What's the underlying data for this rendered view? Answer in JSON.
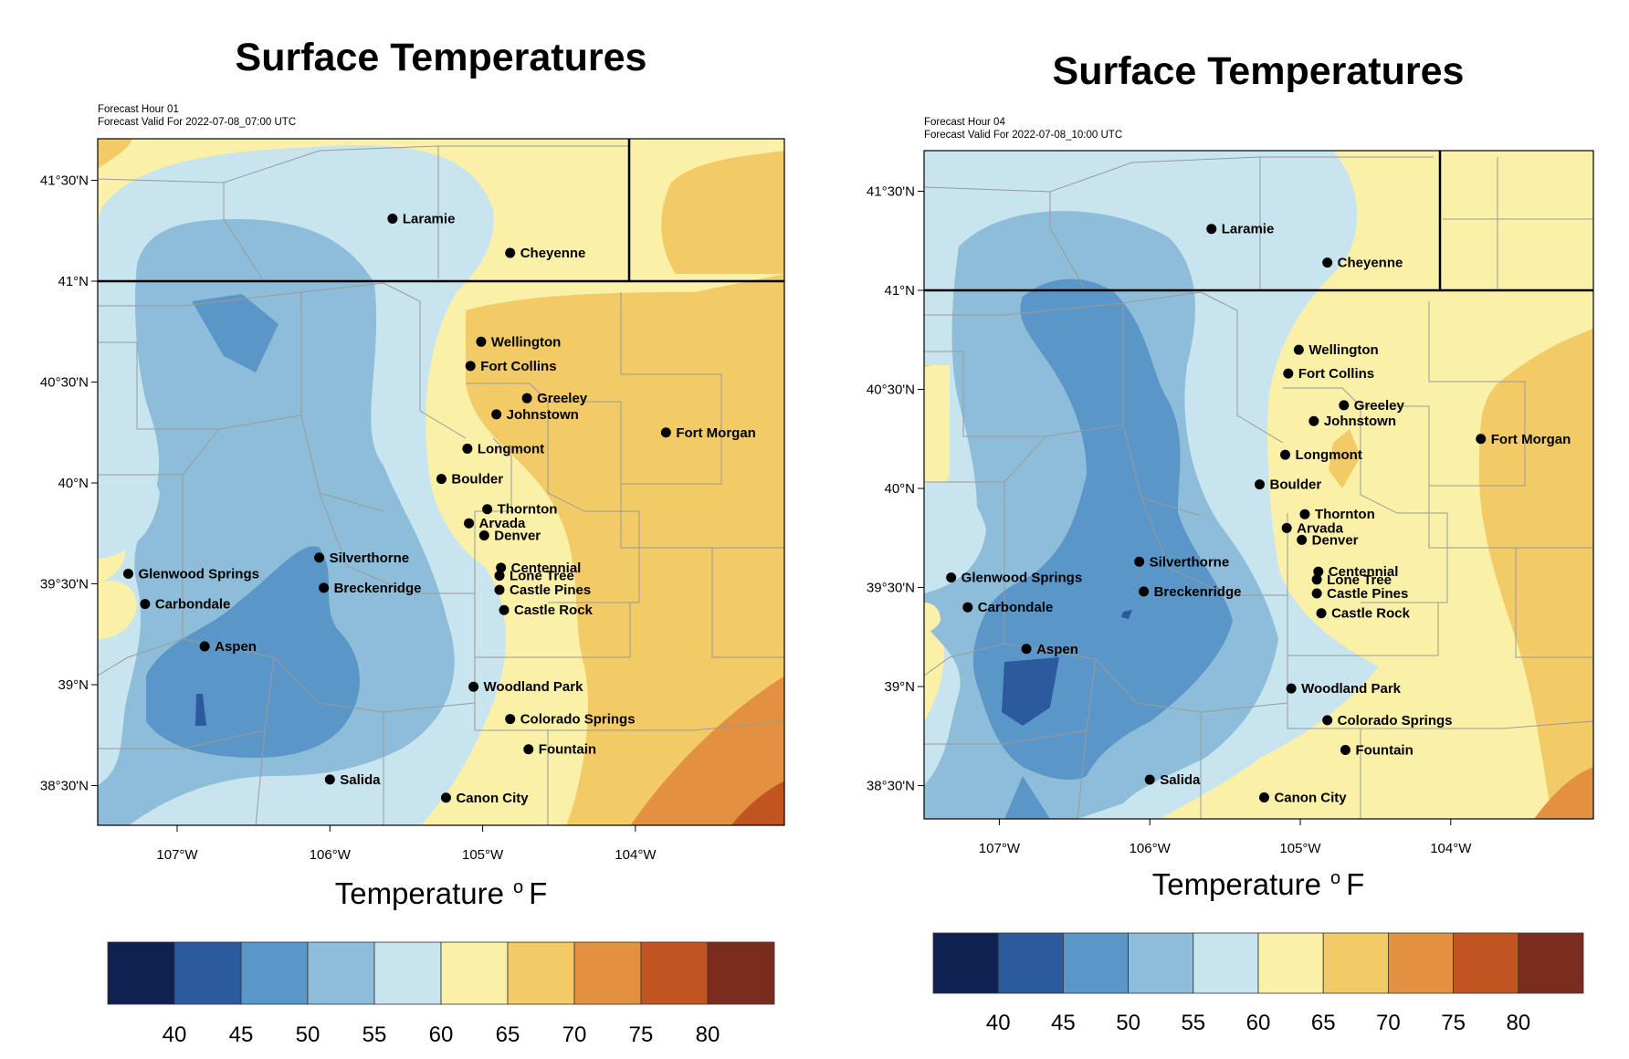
{
  "colors": {
    "levels": [
      "#0f2150",
      "#2b5a9e",
      "#5b96c8",
      "#8dbdd9",
      "#c8e4ef",
      "#fbf0a8",
      "#f2ca66",
      "#e39140",
      "#c05522",
      "#7a2d1f"
    ],
    "county_lines": "#9a9a9a",
    "state_line": "#000000"
  },
  "colorbar": {
    "ticks": [
      "40",
      "45",
      "50",
      "55",
      "60",
      "65",
      "70",
      "75",
      "80"
    ]
  },
  "panels": [
    {
      "title": "Surface Temperatures",
      "forecast_hour": "Forecast Hour 01",
      "forecast_valid": "Forecast Valid For 2022-07-08_07:00 UTC",
      "x_axis_label": "Temperature",
      "x_axis_unit": "o F",
      "lat_ticks": [
        "41°30'N",
        "41°N",
        "40°30'N",
        "40°N",
        "39°30'N",
        "39°N",
        "38°30'N"
      ],
      "lon_ticks": [
        "107°W",
        "106°W",
        "105°W",
        "104°W"
      ],
      "cities": [
        {
          "name": "Laramie",
          "lon": -105.59,
          "lat": 41.31
        },
        {
          "name": "Cheyenne",
          "lon": -104.82,
          "lat": 41.14
        },
        {
          "name": "Wellington",
          "lon": -105.01,
          "lat": 40.7
        },
        {
          "name": "Fort Collins",
          "lon": -105.08,
          "lat": 40.58
        },
        {
          "name": "Greeley",
          "lon": -104.71,
          "lat": 40.42
        },
        {
          "name": "Johnstown",
          "lon": -104.91,
          "lat": 40.34
        },
        {
          "name": "Fort Morgan",
          "lon": -103.8,
          "lat": 40.25
        },
        {
          "name": "Longmont",
          "lon": -105.1,
          "lat": 40.17
        },
        {
          "name": "Boulder",
          "lon": -105.27,
          "lat": 40.02
        },
        {
          "name": "Thornton",
          "lon": -104.97,
          "lat": 39.87
        },
        {
          "name": "Arvada",
          "lon": -105.09,
          "lat": 39.8
        },
        {
          "name": "Denver",
          "lon": -104.99,
          "lat": 39.74
        },
        {
          "name": "Silverthorne",
          "lon": -106.07,
          "lat": 39.63
        },
        {
          "name": "Glenwood Springs",
          "lon": -107.32,
          "lat": 39.55
        },
        {
          "name": "Centennial",
          "lon": -104.88,
          "lat": 39.58
        },
        {
          "name": "Lone Tree",
          "lon": -104.89,
          "lat": 39.54
        },
        {
          "name": "Breckenridge",
          "lon": -106.04,
          "lat": 39.48
        },
        {
          "name": "Castle Pines",
          "lon": -104.89,
          "lat": 39.47
        },
        {
          "name": "Carbondale",
          "lon": -107.21,
          "lat": 39.4
        },
        {
          "name": "Castle Rock",
          "lon": -104.86,
          "lat": 39.37
        },
        {
          "name": "Aspen",
          "lon": -106.82,
          "lat": 39.19
        },
        {
          "name": "Woodland Park",
          "lon": -105.06,
          "lat": 38.99
        },
        {
          "name": "Colorado Springs",
          "lon": -104.82,
          "lat": 38.83
        },
        {
          "name": "Fountain",
          "lon": -104.7,
          "lat": 38.68
        },
        {
          "name": "Salida",
          "lon": -106.0,
          "lat": 38.53
        },
        {
          "name": "Canon City",
          "lon": -105.24,
          "lat": 38.44
        }
      ]
    },
    {
      "title": "Surface Temperatures",
      "forecast_hour": "Forecast Hour 04",
      "forecast_valid": "Forecast Valid For 2022-07-08_10:00 UTC",
      "x_axis_label": "Temperature",
      "x_axis_unit": "o F",
      "lat_ticks": [
        "41°30'N",
        "41°N",
        "40°30'N",
        "40°N",
        "39°30'N",
        "39°N",
        "38°30'N"
      ],
      "lon_ticks": [
        "107°W",
        "106°W",
        "105°W",
        "104°W"
      ],
      "cities": [
        {
          "name": "Laramie",
          "lon": -105.59,
          "lat": 41.31
        },
        {
          "name": "Cheyenne",
          "lon": -104.82,
          "lat": 41.14
        },
        {
          "name": "Wellington",
          "lon": -105.01,
          "lat": 40.7
        },
        {
          "name": "Fort Collins",
          "lon": -105.08,
          "lat": 40.58
        },
        {
          "name": "Greeley",
          "lon": -104.71,
          "lat": 40.42
        },
        {
          "name": "Johnstown",
          "lon": -104.91,
          "lat": 40.34
        },
        {
          "name": "Fort Morgan",
          "lon": -103.8,
          "lat": 40.25
        },
        {
          "name": "Longmont",
          "lon": -105.1,
          "lat": 40.17
        },
        {
          "name": "Boulder",
          "lon": -105.27,
          "lat": 40.02
        },
        {
          "name": "Thornton",
          "lon": -104.97,
          "lat": 39.87
        },
        {
          "name": "Arvada",
          "lon": -105.09,
          "lat": 39.8
        },
        {
          "name": "Denver",
          "lon": -104.99,
          "lat": 39.74
        },
        {
          "name": "Silverthorne",
          "lon": -106.07,
          "lat": 39.63
        },
        {
          "name": "Glenwood Springs",
          "lon": -107.32,
          "lat": 39.55
        },
        {
          "name": "Centennial",
          "lon": -104.88,
          "lat": 39.58
        },
        {
          "name": "Lone Tree",
          "lon": -104.89,
          "lat": 39.54
        },
        {
          "name": "Breckenridge",
          "lon": -106.04,
          "lat": 39.48
        },
        {
          "name": "Castle Pines",
          "lon": -104.89,
          "lat": 39.47
        },
        {
          "name": "Carbondale",
          "lon": -107.21,
          "lat": 39.4
        },
        {
          "name": "Castle Rock",
          "lon": -104.86,
          "lat": 39.37
        },
        {
          "name": "Aspen",
          "lon": -106.82,
          "lat": 39.19
        },
        {
          "name": "Woodland Park",
          "lon": -105.06,
          "lat": 38.99
        },
        {
          "name": "Colorado Springs",
          "lon": -104.82,
          "lat": 38.83
        },
        {
          "name": "Fountain",
          "lon": -104.7,
          "lat": 38.68
        },
        {
          "name": "Salida",
          "lon": -106.0,
          "lat": 38.53
        },
        {
          "name": "Canon City",
          "lon": -105.24,
          "lat": 38.44
        }
      ]
    }
  ]
}
